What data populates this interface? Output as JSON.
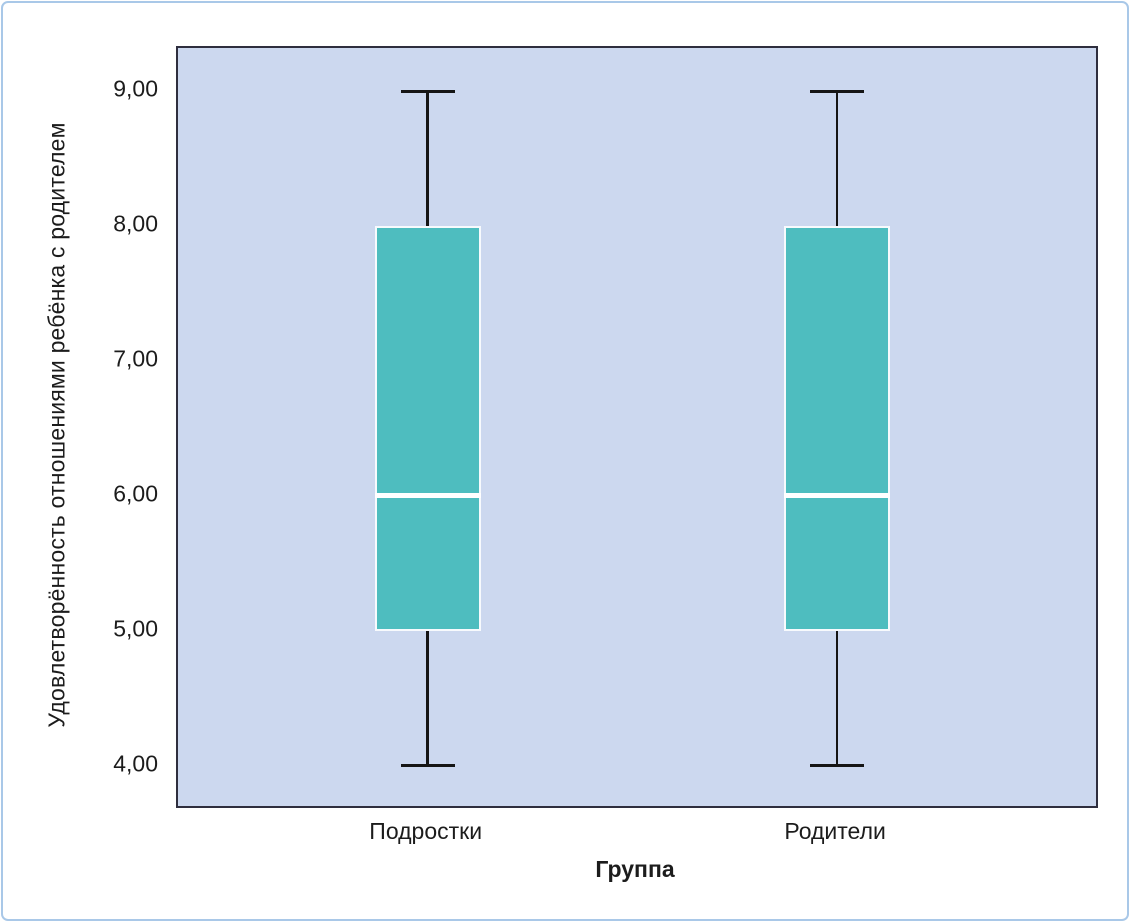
{
  "chart_data": {
    "type": "boxplot",
    "title": "",
    "xlabel": "Группа",
    "ylabel": "Удовлетворённость отношениями ребёнка с родителем",
    "ylim": [
      3.7,
      9.32
    ],
    "yticks": [
      4,
      5,
      6,
      7,
      8,
      9
    ],
    "ytick_labels": [
      "4,00",
      "5,00",
      "6,00",
      "7,00",
      "8,00",
      "9,00"
    ],
    "categories": [
      "Подростки",
      "Родители"
    ],
    "series": [
      {
        "name": "Подростки",
        "min": 4.0,
        "q1": 5.0,
        "median": 6.0,
        "q3": 8.0,
        "max": 9.0
      },
      {
        "name": "Родители",
        "min": 4.0,
        "q1": 5.0,
        "median": 6.0,
        "q3": 8.0,
        "max": 9.0
      }
    ],
    "legend": null,
    "grid": false,
    "colors": {
      "box_fill": "#4ebdbf",
      "box_border": "#f7fafd",
      "median": "#ffffff",
      "whisker": "#151515",
      "plot_bg": "#ccd8ef",
      "frame_border": "#2e2e3e",
      "page_border": "#a9c8e8",
      "text": "#1c1c1c"
    }
  }
}
